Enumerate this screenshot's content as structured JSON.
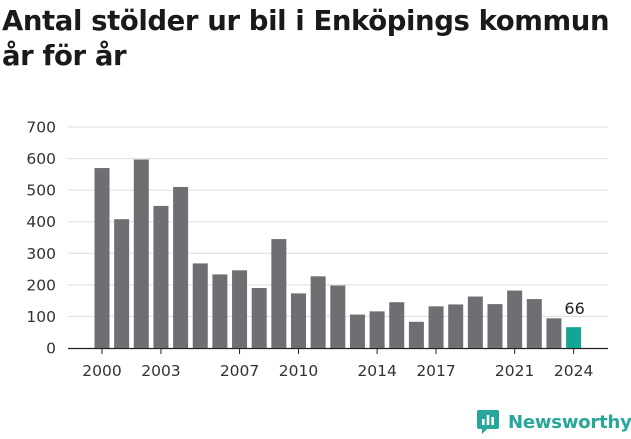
{
  "header": {
    "title": "Antal stölder ur bil i Enköpings kommun\når för år"
  },
  "brand": {
    "name": "Newsworthy",
    "icon": "newsworthy-logo-icon",
    "color": "#27a69a"
  },
  "colors": {
    "bar": "#6f6e73",
    "highlight": "#12a596",
    "grid": "#dddddd",
    "axis": "#222222"
  },
  "chart_data": {
    "type": "bar",
    "title": "Antal stölder ur bil i Enköpings kommun\når för år",
    "xlabel": "",
    "ylabel": "",
    "ylim": [
      0,
      700
    ],
    "yticks": [
      0,
      100,
      200,
      300,
      400,
      500,
      600,
      700
    ],
    "xticks": [
      "2000",
      "2003",
      "2007",
      "2010",
      "2014",
      "2017",
      "2021",
      "2024"
    ],
    "grid": true,
    "legend": "none",
    "categories": [
      "2000",
      "2001",
      "2002",
      "2003",
      "2004",
      "2005",
      "2006",
      "2007",
      "2008",
      "2009",
      "2010",
      "2011",
      "2012",
      "2013",
      "2014",
      "2015",
      "2016",
      "2017",
      "2018",
      "2019",
      "2020",
      "2021",
      "2022",
      "2023",
      "2024"
    ],
    "values": [
      570,
      408,
      597,
      450,
      510,
      268,
      233,
      246,
      190,
      345,
      173,
      227,
      198,
      106,
      116,
      145,
      83,
      132,
      138,
      163,
      139,
      182,
      155,
      94,
      66
    ],
    "highlight_index": 24,
    "data_labels": [
      {
        "category": "2024",
        "text": "66"
      }
    ]
  }
}
